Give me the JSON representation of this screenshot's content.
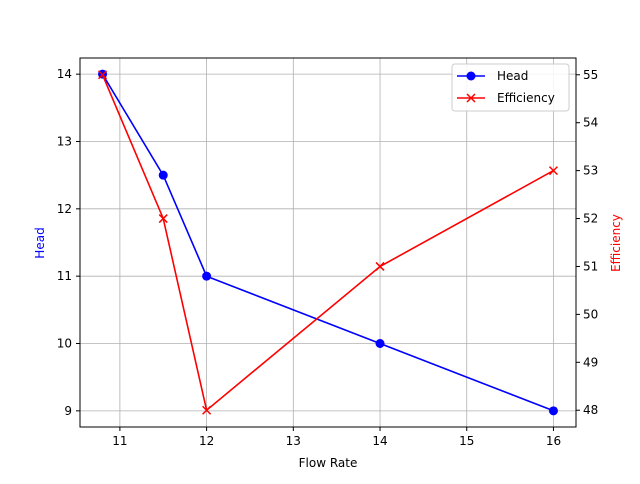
{
  "chart_data": {
    "type": "line",
    "title": "",
    "xlabel": "Flow Rate",
    "ylabel": "Head",
    "ylabel_right": "Efficiency",
    "x": [
      10.8,
      11.5,
      12,
      14,
      16
    ],
    "xlim": [
      10.54,
      16.26
    ],
    "xticks": [
      11,
      12,
      13,
      14,
      15,
      16
    ],
    "ylim": [
      8.76,
      14.24
    ],
    "yticks": [
      9,
      10,
      11,
      12,
      13,
      14
    ],
    "ylim_right": [
      47.65,
      55.35
    ],
    "yticks_right": [
      48,
      49,
      50,
      51,
      52,
      53,
      54,
      55
    ],
    "grid": true,
    "legend_position": "upper right",
    "series": [
      {
        "name": "Head",
        "axis": "left",
        "values": [
          14,
          12.5,
          11,
          10,
          9
        ],
        "color": "#0000ff",
        "marker": "circle"
      },
      {
        "name": "Efficiency",
        "axis": "right",
        "values": [
          55,
          52,
          48,
          51,
          53
        ],
        "color": "#ff0000",
        "marker": "x"
      }
    ]
  },
  "colors": {
    "head": "#0000ff",
    "efficiency": "#ff0000",
    "grid": "#b0b0b0",
    "axis": "#000000"
  }
}
